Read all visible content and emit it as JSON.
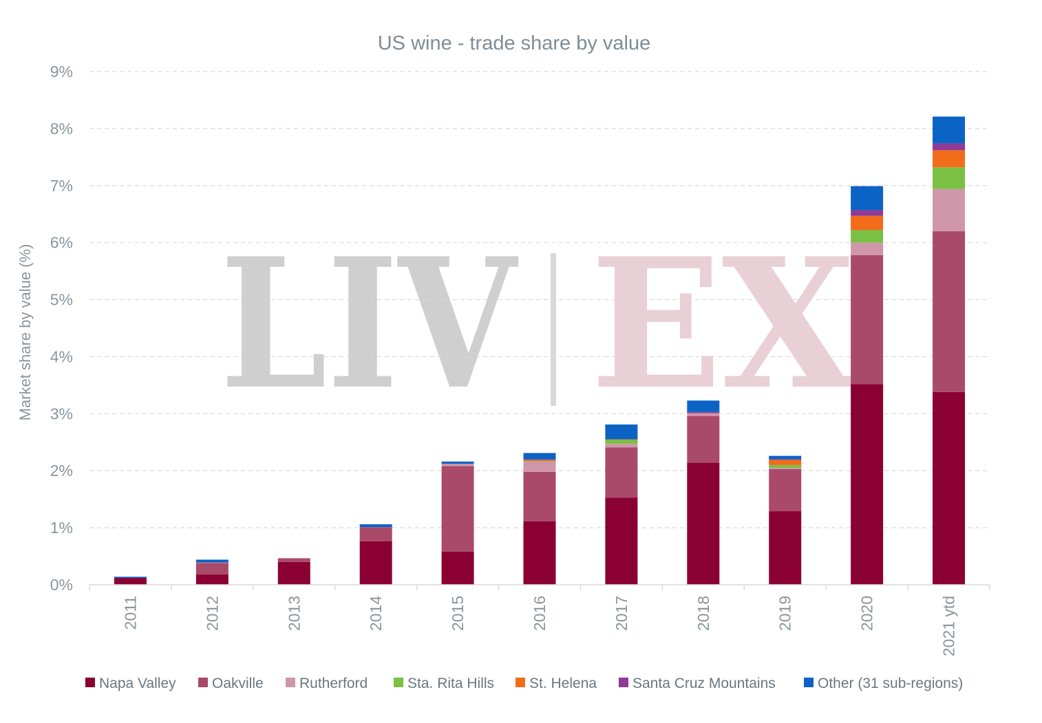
{
  "chart_data": {
    "type": "bar",
    "stacked": true,
    "title": "US wine - trade share by value",
    "xlabel": "",
    "ylabel": "Market share by value (%)",
    "ylim": [
      0,
      9
    ],
    "yticks": [
      "0%",
      "1%",
      "2%",
      "3%",
      "4%",
      "5%",
      "6%",
      "7%",
      "8%",
      "9%"
    ],
    "grid": true,
    "legend_position": "bottom",
    "categories": [
      "2011",
      "2012",
      "2013",
      "2014",
      "2015",
      "2016",
      "2017",
      "2018",
      "2019",
      "2020",
      "2021 ytd"
    ],
    "series": [
      {
        "name": "Napa Valley",
        "color": "#8b0033",
        "values": [
          0.12,
          0.18,
          0.4,
          0.76,
          0.58,
          1.11,
          1.53,
          2.14,
          1.29,
          3.52,
          3.38
        ]
      },
      {
        "name": "Oakville",
        "color": "#aa4a6b",
        "values": [
          0.0,
          0.2,
          0.06,
          0.25,
          1.5,
          0.87,
          0.88,
          0.82,
          0.74,
          2.26,
          2.82
        ]
      },
      {
        "name": "Rutherford",
        "color": "#d096aa",
        "values": [
          0.0,
          0.01,
          0.01,
          0.0,
          0.04,
          0.18,
          0.06,
          0.05,
          0.02,
          0.22,
          0.74
        ]
      },
      {
        "name": "Sta. Rita Hills",
        "color": "#7ac143",
        "values": [
          0.0,
          0.0,
          0.0,
          0.0,
          0.0,
          0.01,
          0.07,
          0.0,
          0.05,
          0.22,
          0.38
        ]
      },
      {
        "name": "St. Helena",
        "color": "#f26c1a",
        "values": [
          0.0,
          0.0,
          0.0,
          0.0,
          0.0,
          0.02,
          0.01,
          0.0,
          0.09,
          0.25,
          0.3
        ]
      },
      {
        "name": "Santa Cruz Mountains",
        "color": "#8e3a96",
        "values": [
          0.0,
          0.0,
          0.0,
          0.0,
          0.0,
          0.01,
          0.0,
          0.02,
          0.01,
          0.1,
          0.12
        ]
      },
      {
        "name": "Other (31 sub-regions)",
        "color": "#0b63c5",
        "values": [
          0.02,
          0.05,
          0.0,
          0.05,
          0.04,
          0.11,
          0.26,
          0.2,
          0.06,
          0.42,
          0.47
        ]
      }
    ]
  },
  "watermark": {
    "left": "LIV",
    "right": "EX"
  }
}
